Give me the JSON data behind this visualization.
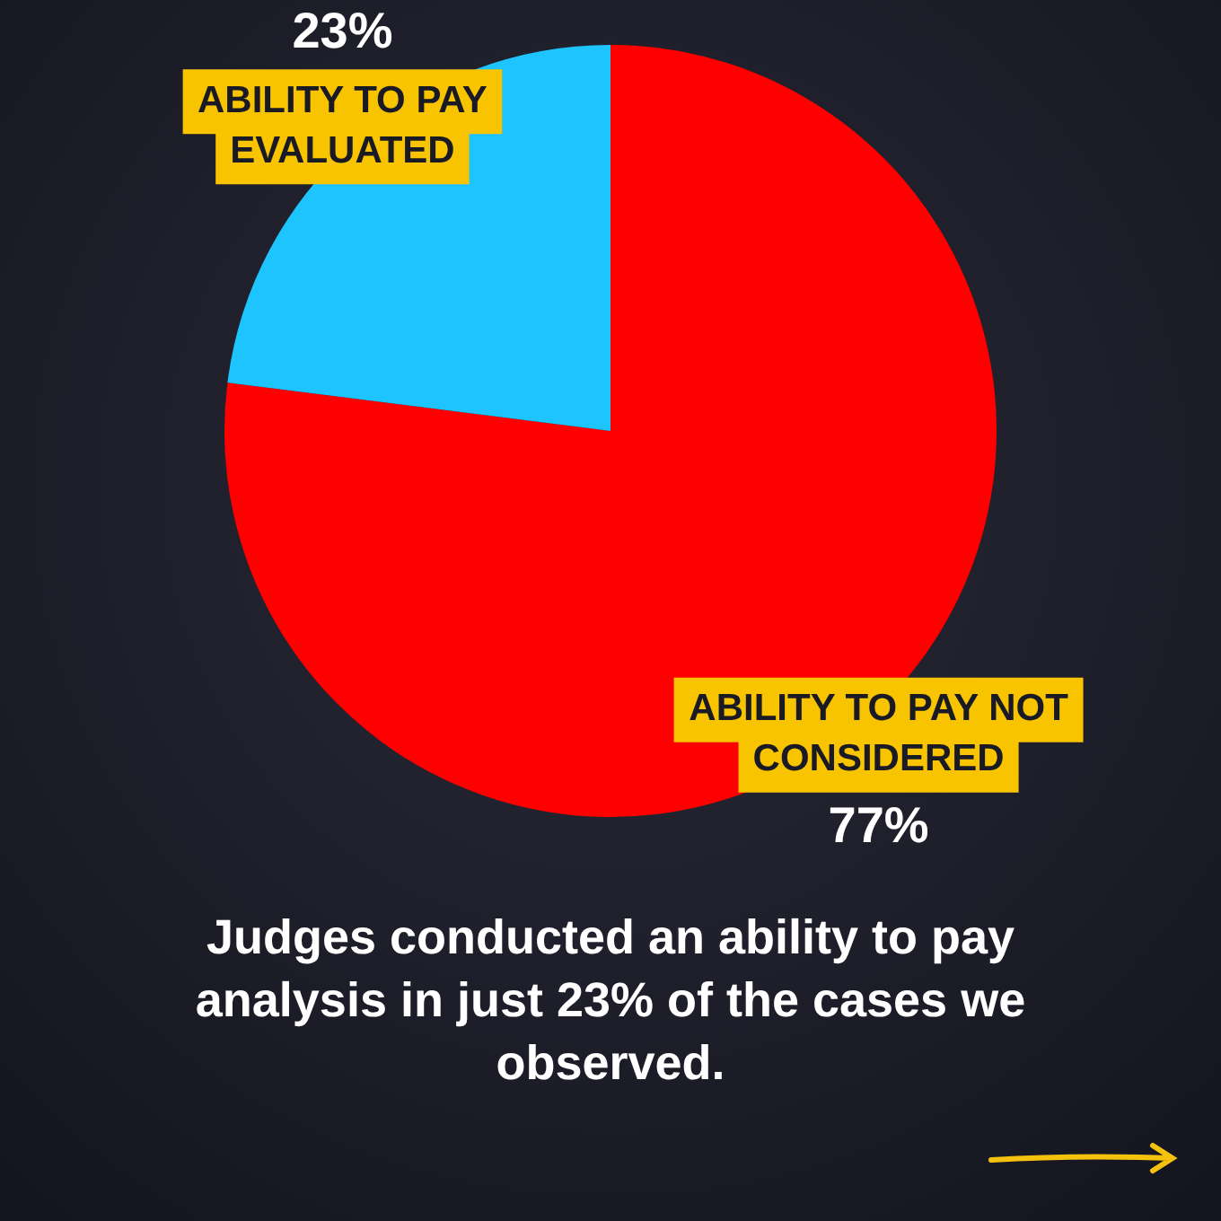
{
  "chart_data": {
    "type": "pie",
    "categories": [
      "ABILITY TO PAY NOT CONSIDERED",
      "ABILITY TO PAY EVALUATED"
    ],
    "values": [
      77,
      23
    ],
    "colors": [
      "#fe0000",
      "#1ec4fd"
    ],
    "value_labels": [
      "77%",
      "23%"
    ],
    "legend": false,
    "annotations": [
      "Judges conducted an ability to pay analysis in just 23% of the cases we observed."
    ]
  }
}
